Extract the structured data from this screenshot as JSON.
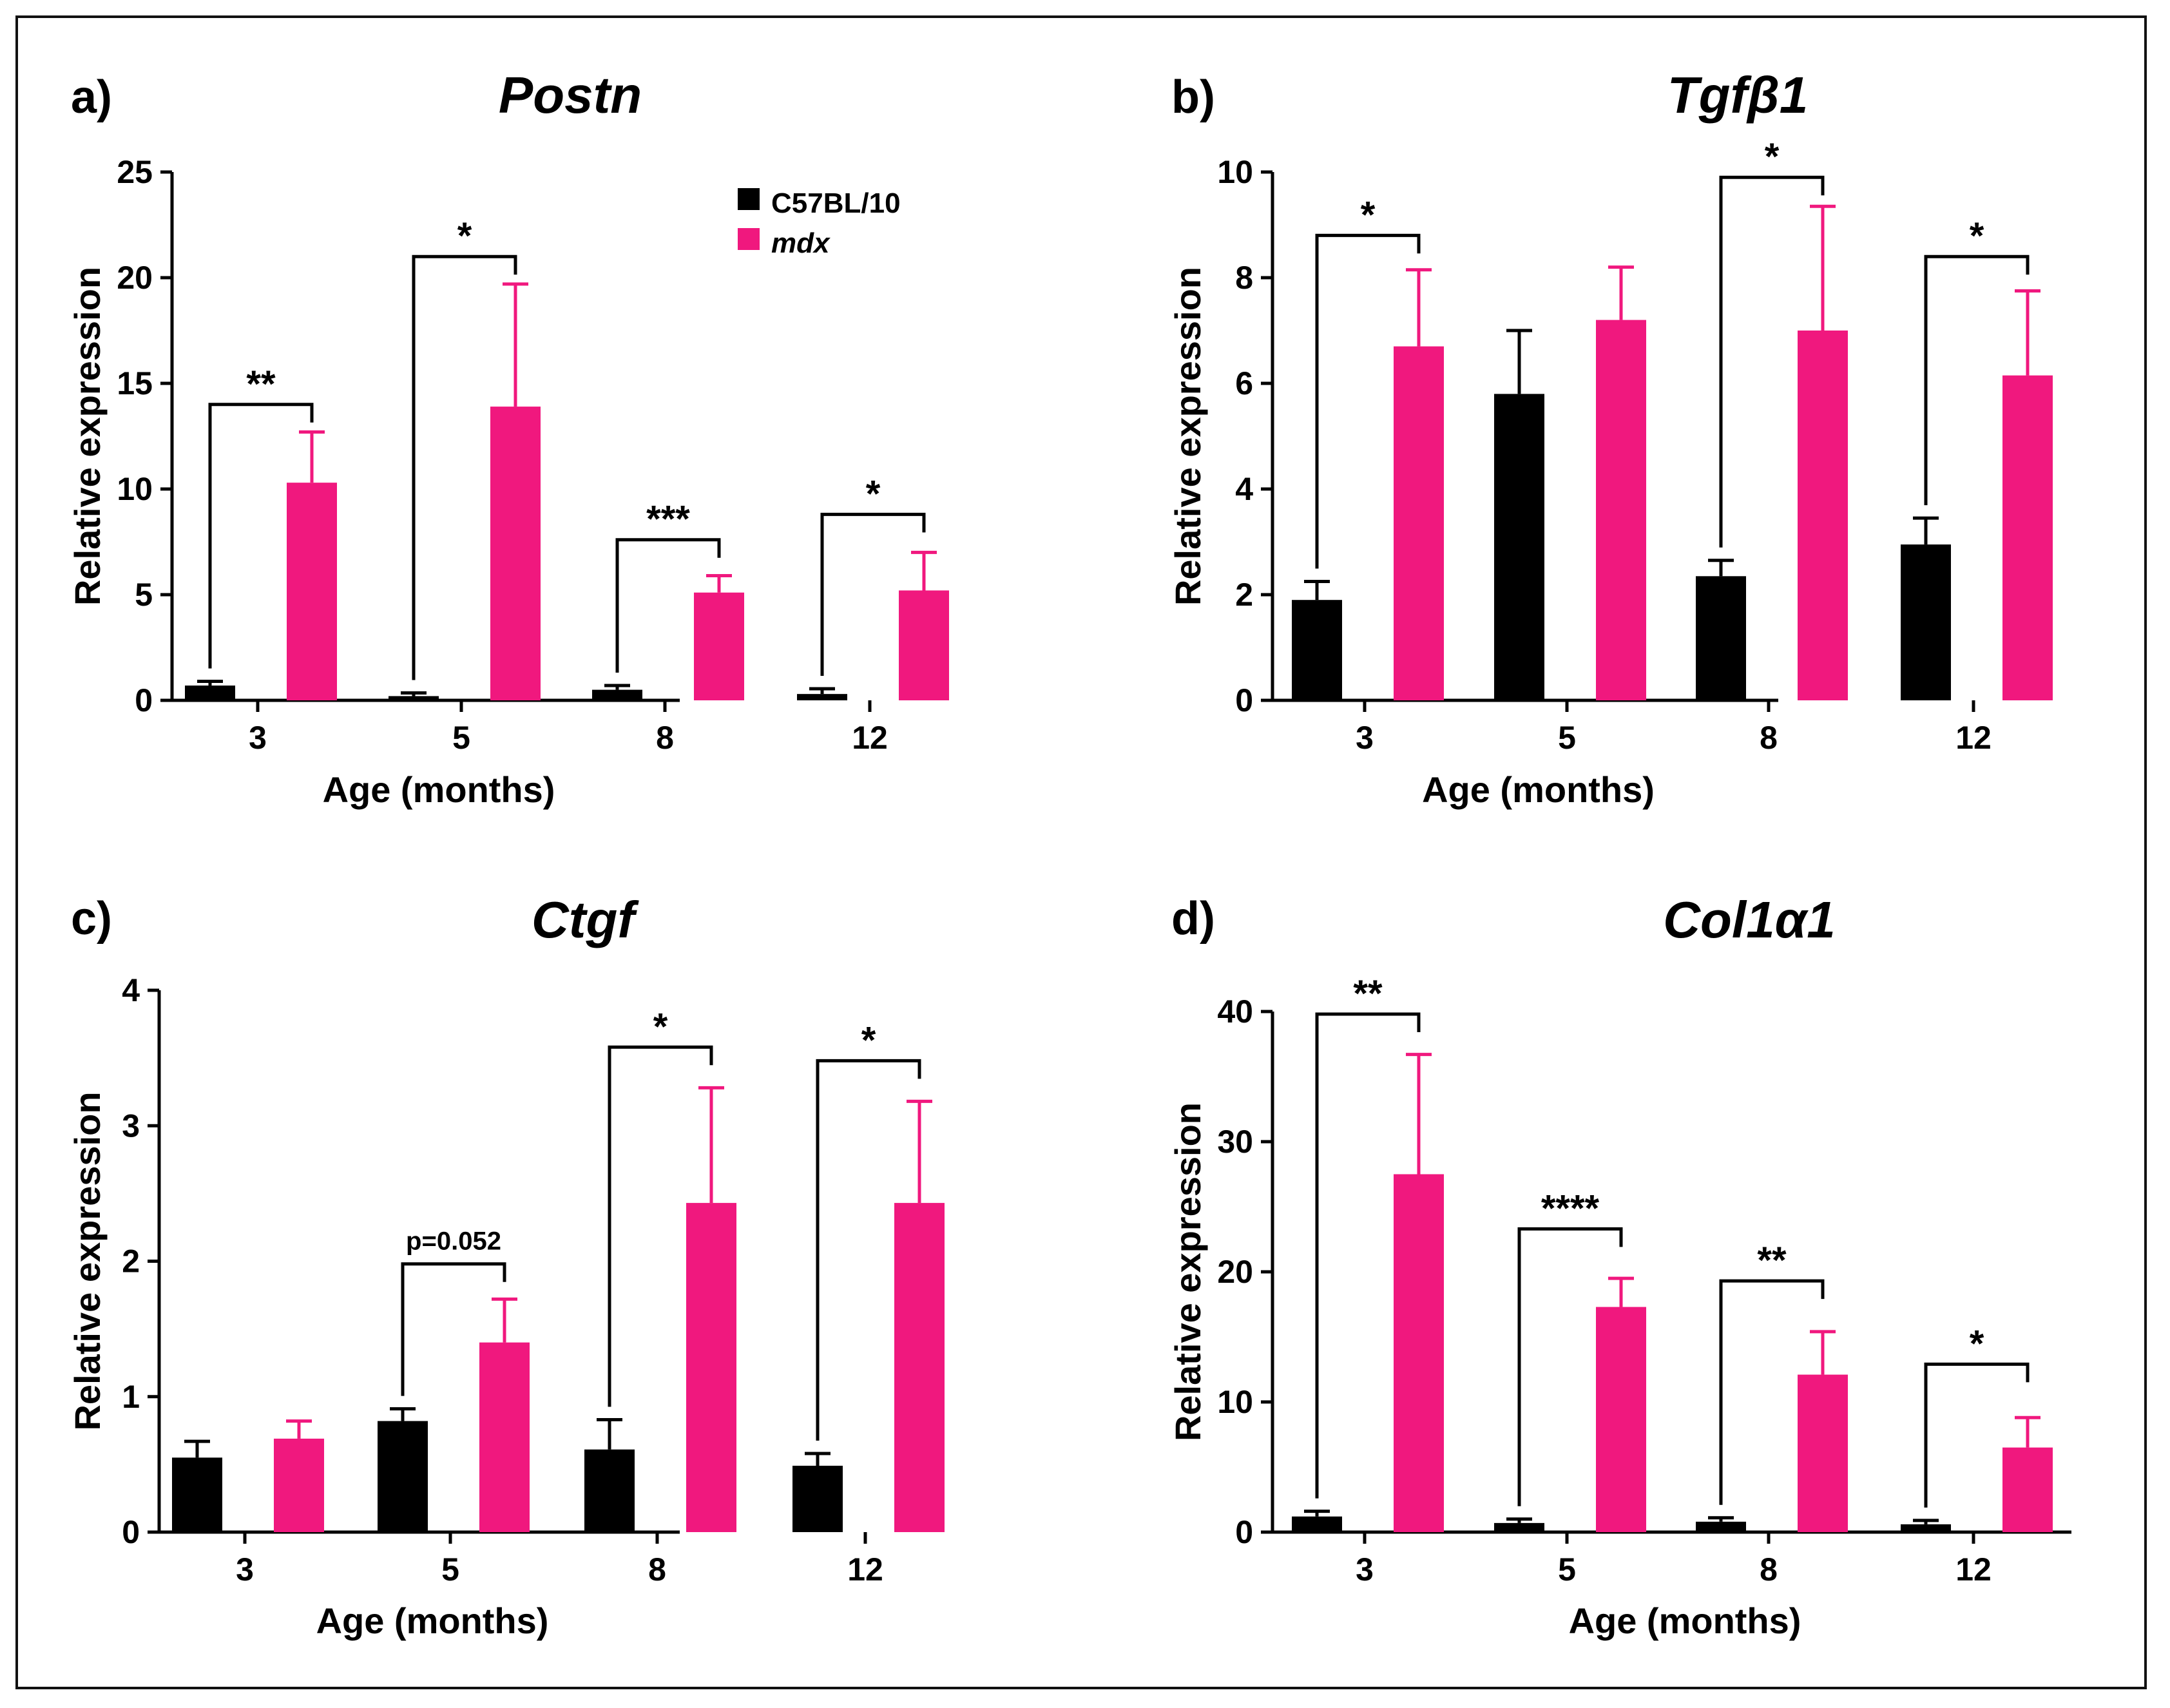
{
  "figure": {
    "legend": {
      "entries": [
        {
          "name": "C57BL/10",
          "italic": false,
          "color": "#000000"
        },
        {
          "name": "mdx",
          "italic": true,
          "color": "#f0187e"
        }
      ]
    }
  },
  "chart_data": [
    {
      "panel": "a)",
      "title": "Postn",
      "type": "bar",
      "xlabel": "Age (months)",
      "ylabel": "Relative expression",
      "ylim": [
        0,
        25
      ],
      "yticks": [
        "0",
        "5",
        "10",
        "15",
        "20",
        "25"
      ],
      "categories": [
        "3",
        "5",
        "8",
        "12"
      ],
      "series": [
        {
          "name": "C57BL/10",
          "color": "#000000",
          "values": [
            0.7,
            0.2,
            0.5,
            0.3
          ],
          "errors": [
            0.2,
            0.15,
            0.2,
            0.25
          ]
        },
        {
          "name": "mdx",
          "color": "#f0187e",
          "values": [
            10.3,
            13.9,
            5.1,
            5.2
          ],
          "errors": [
            2.4,
            5.8,
            0.8,
            1.8
          ]
        }
      ],
      "significance": [
        {
          "category": "3",
          "label": "**",
          "level": 14.0
        },
        {
          "category": "5",
          "label": "*",
          "level": 21.0
        },
        {
          "category": "8",
          "label": "***",
          "level": 7.6
        },
        {
          "category": "12",
          "label": "*",
          "level": 8.8
        }
      ]
    },
    {
      "panel": "b)",
      "title": "Tgfβ1",
      "type": "bar",
      "xlabel": "Age (months)",
      "ylabel": "Relative expression",
      "ylim": [
        0,
        10
      ],
      "yticks": [
        "0",
        "2",
        "4",
        "6",
        "8",
        "10"
      ],
      "categories": [
        "3",
        "5",
        "8",
        "12"
      ],
      "series": [
        {
          "name": "C57BL/10",
          "color": "#000000",
          "values": [
            1.9,
            5.8,
            2.35,
            2.95
          ],
          "errors": [
            0.35,
            1.2,
            0.3,
            0.5
          ]
        },
        {
          "name": "mdx",
          "color": "#f0187e",
          "values": [
            6.7,
            7.2,
            7.0,
            6.15
          ],
          "errors": [
            1.45,
            1.0,
            2.35,
            1.6
          ]
        }
      ],
      "significance": [
        {
          "category": "3",
          "label": "*",
          "level": 8.8
        },
        {
          "category": "8",
          "label": "*",
          "level": 9.9
        },
        {
          "category": "12",
          "label": "*",
          "level": 8.4
        }
      ]
    },
    {
      "panel": "c)",
      "title": "Ctgf",
      "type": "bar",
      "xlabel": "Age (months)",
      "ylabel": "Relative expression",
      "ylim": [
        0,
        4
      ],
      "yticks": [
        "0",
        "1",
        "2",
        "3",
        "4"
      ],
      "categories": [
        "3",
        "5",
        "8",
        "12"
      ],
      "series": [
        {
          "name": "C57BL/10",
          "color": "#000000",
          "values": [
            0.55,
            0.82,
            0.61,
            0.49
          ],
          "errors": [
            0.12,
            0.09,
            0.22,
            0.09
          ]
        },
        {
          "name": "mdx",
          "color": "#f0187e",
          "values": [
            0.69,
            1.4,
            2.43,
            2.43
          ],
          "errors": [
            0.13,
            0.32,
            0.85,
            0.75
          ]
        }
      ],
      "significance": [
        {
          "category": "5",
          "label": "p=0.052",
          "level": 1.98
        },
        {
          "category": "8",
          "label": "*",
          "level": 3.58
        },
        {
          "category": "12",
          "label": "*",
          "level": 3.48
        }
      ]
    },
    {
      "panel": "d)",
      "title": "Col1α1",
      "type": "bar",
      "xlabel": "Age (months)",
      "ylabel": "Relative expression",
      "ylim": [
        0,
        40
      ],
      "yticks": [
        "0",
        "10",
        "20",
        "30",
        "40"
      ],
      "categories": [
        "3",
        "5",
        "8",
        "12"
      ],
      "series": [
        {
          "name": "C57BL/10",
          "color": "#000000",
          "values": [
            1.2,
            0.7,
            0.8,
            0.6
          ],
          "errors": [
            0.4,
            0.3,
            0.3,
            0.3
          ]
        },
        {
          "name": "mdx",
          "color": "#f0187e",
          "values": [
            27.5,
            17.3,
            12.1,
            6.5
          ],
          "errors": [
            9.2,
            2.2,
            3.3,
            2.3
          ]
        }
      ],
      "significance": [
        {
          "category": "3",
          "label": "**",
          "level": 39.8
        },
        {
          "category": "5",
          "label": "****",
          "level": 23.3
        },
        {
          "category": "8",
          "label": "**",
          "level": 19.3
        },
        {
          "category": "12",
          "label": "*",
          "level": 12.9
        }
      ]
    }
  ]
}
